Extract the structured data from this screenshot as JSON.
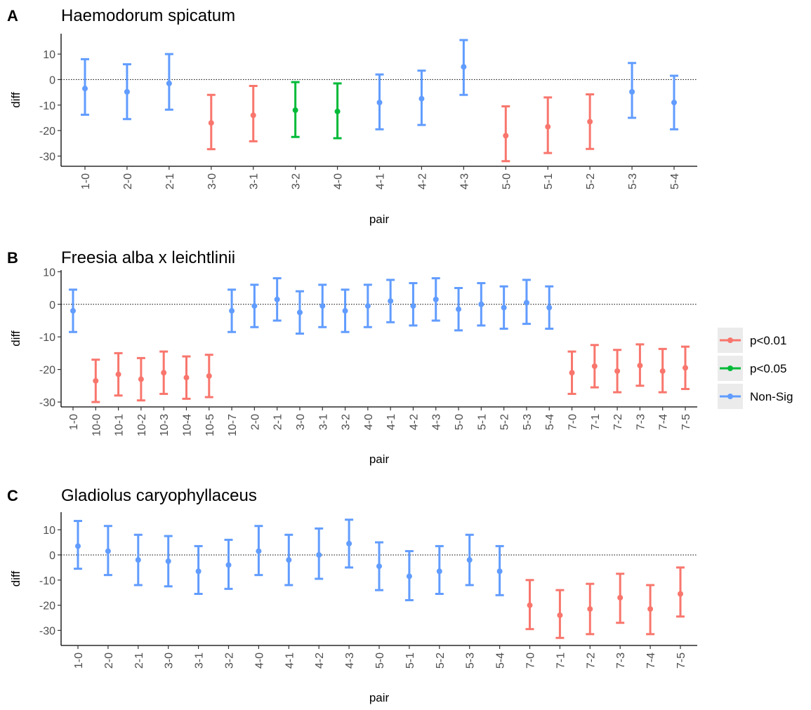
{
  "legend": {
    "items": [
      {
        "label": "p<0.01",
        "color": "#F8766D"
      },
      {
        "label": "p<0.05",
        "color": "#00BA38"
      },
      {
        "label": "Non-Sig",
        "color": "#619CFF"
      }
    ]
  },
  "chart_data": [
    {
      "type": "errorbar",
      "panel_letter": "A",
      "title": "Haemodorum spicatum",
      "xlabel": "pair",
      "ylabel": "diff",
      "ylim": [
        -34,
        18
      ],
      "yticks": [
        10,
        0,
        -10,
        -20,
        -30
      ],
      "reference_line": 0,
      "categories": [
        "1-0",
        "2-0",
        "2-1",
        "3-0",
        "3-1",
        "3-2",
        "4-0",
        "4-1",
        "4-2",
        "4-3",
        "5-0",
        "5-1",
        "5-2",
        "5-3",
        "5-4"
      ],
      "values": [
        -3.5,
        -4.8,
        -1.5,
        -17,
        -14,
        -12,
        -12.5,
        -9,
        -7.5,
        5,
        -22,
        -18.5,
        -16.5,
        -4.8,
        -9
      ],
      "lower": [
        -13.8,
        -15.5,
        -11.8,
        -27.3,
        -24.2,
        -22.5,
        -23,
        -19.5,
        -17.8,
        -6,
        -32,
        -28.8,
        -27.2,
        -15,
        -19.5
      ],
      "upper": [
        8,
        6,
        10,
        -6,
        -2.5,
        -1,
        -1.5,
        2,
        3.5,
        15.5,
        -10.5,
        -7,
        -5.8,
        6.5,
        1.5
      ],
      "groups": [
        "Non-Sig",
        "Non-Sig",
        "Non-Sig",
        "p<0.01",
        "p<0.01",
        "p<0.05",
        "p<0.05",
        "Non-Sig",
        "Non-Sig",
        "Non-Sig",
        "p<0.01",
        "p<0.01",
        "p<0.01",
        "Non-Sig",
        "Non-Sig"
      ]
    },
    {
      "type": "errorbar",
      "panel_letter": "B",
      "title": "Freesia alba x leichtlinii",
      "xlabel": "pair",
      "ylabel": "diff",
      "ylim": [
        -31.5,
        10.5
      ],
      "yticks": [
        10,
        0,
        -10,
        -20,
        -30
      ],
      "reference_line": 0,
      "categories": [
        "1-0",
        "10-0",
        "10-1",
        "10-2",
        "10-3",
        "10-4",
        "10-5",
        "10-7",
        "2-0",
        "2-1",
        "3-0",
        "3-1",
        "3-2",
        "4-0",
        "4-1",
        "4-2",
        "4-3",
        "5-0",
        "5-1",
        "5-2",
        "5-3",
        "5-4",
        "7-0",
        "7-1",
        "7-2",
        "7-3",
        "7-4",
        "7-5"
      ],
      "values": [
        -2,
        -23.5,
        -21.5,
        -23,
        -21,
        -22.5,
        -22,
        -2,
        -0.5,
        1.5,
        -2.5,
        -0.5,
        -2,
        -0.5,
        1,
        -0.5,
        1.5,
        -1.5,
        0,
        -1,
        0.5,
        -1,
        -21,
        -19,
        -20.5,
        -18.8,
        -20.5,
        -19.5
      ],
      "lower": [
        -8.5,
        -30,
        -28,
        -29.5,
        -27.5,
        -29,
        -28.5,
        -8.5,
        -7,
        -5,
        -9,
        -7,
        -8.5,
        -7,
        -5.5,
        -6.5,
        -5,
        -8,
        -6.5,
        -7.5,
        -6,
        -7.5,
        -27.5,
        -25.5,
        -27,
        -25,
        -27,
        -26
      ],
      "upper": [
        4.5,
        -17,
        -15,
        -16.5,
        -14.5,
        -16,
        -15.5,
        4.5,
        6,
        8,
        4,
        6,
        4.5,
        6,
        7.5,
        6.5,
        8,
        5,
        6.5,
        5.5,
        7.5,
        5.5,
        -14.5,
        -12.5,
        -14,
        -12.3,
        -13.7,
        -13
      ],
      "groups": [
        "Non-Sig",
        "p<0.01",
        "p<0.01",
        "p<0.01",
        "p<0.01",
        "p<0.01",
        "p<0.01",
        "Non-Sig",
        "Non-Sig",
        "Non-Sig",
        "Non-Sig",
        "Non-Sig",
        "Non-Sig",
        "Non-Sig",
        "Non-Sig",
        "Non-Sig",
        "Non-Sig",
        "Non-Sig",
        "Non-Sig",
        "Non-Sig",
        "Non-Sig",
        "Non-Sig",
        "p<0.01",
        "p<0.01",
        "p<0.01",
        "p<0.01",
        "p<0.01",
        "p<0.01"
      ]
    },
    {
      "type": "errorbar",
      "panel_letter": "C",
      "title": "Gladiolus caryophyllaceus",
      "xlabel": "pair",
      "ylabel": "diff",
      "ylim": [
        -36,
        17
      ],
      "yticks": [
        10,
        0,
        -10,
        -20,
        -30
      ],
      "reference_line": 0,
      "categories": [
        "1-0",
        "2-0",
        "2-1",
        "3-0",
        "3-1",
        "3-2",
        "4-0",
        "4-1",
        "4-2",
        "4-3",
        "5-0",
        "5-1",
        "5-2",
        "5-3",
        "5-4",
        "7-0",
        "7-1",
        "7-2",
        "7-3",
        "7-4",
        "7-5"
      ],
      "values": [
        3.5,
        1.5,
        -2,
        -2.5,
        -6.5,
        -4,
        1.5,
        -2,
        0,
        4.5,
        -4.5,
        -8.5,
        -6.5,
        -2,
        -6.5,
        -20,
        -24,
        -21.5,
        -17,
        -21.5,
        -15.5
      ],
      "lower": [
        -5.5,
        -8,
        -12,
        -12.5,
        -15.5,
        -13.5,
        -8,
        -12,
        -9.5,
        -5,
        -14,
        -18,
        -15.5,
        -12,
        -16,
        -29.5,
        -33,
        -31.5,
        -27,
        -31.5,
        -24.5
      ],
      "upper": [
        13.5,
        11.5,
        8,
        7.5,
        3.5,
        6,
        11.5,
        8,
        10.5,
        14,
        5,
        1.5,
        3.5,
        8,
        3.5,
        -10,
        -14,
        -11.5,
        -7.5,
        -12,
        -5
      ],
      "groups": [
        "Non-Sig",
        "Non-Sig",
        "Non-Sig",
        "Non-Sig",
        "Non-Sig",
        "Non-Sig",
        "Non-Sig",
        "Non-Sig",
        "Non-Sig",
        "Non-Sig",
        "Non-Sig",
        "Non-Sig",
        "Non-Sig",
        "Non-Sig",
        "Non-Sig",
        "p<0.01",
        "p<0.01",
        "p<0.01",
        "p<0.01",
        "p<0.01",
        "p<0.01"
      ]
    }
  ]
}
